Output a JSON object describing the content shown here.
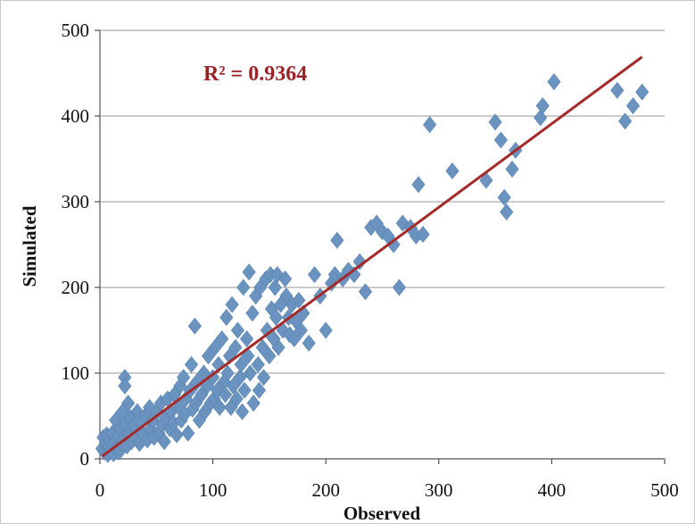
{
  "chart_data": {
    "type": "scatter",
    "title": "",
    "xlabel": "Observed",
    "ylabel": "Simulated",
    "xlim": [
      0,
      500
    ],
    "ylim": [
      0,
      500
    ],
    "xticks": [
      "0",
      "100",
      "200",
      "300",
      "400",
      "500"
    ],
    "yticks": [
      "0",
      "100",
      "200",
      "300",
      "400",
      "500"
    ],
    "grid": "horizontal",
    "legend": "none",
    "annotation": "R² = 0.9364",
    "colors": {
      "points": "#6a93c0",
      "trendline": "#a52a2a",
      "annotation": "#9b2226",
      "grid": "#999999",
      "frame": "#c8c8c8"
    },
    "trendline": {
      "x": [
        2,
        480
      ],
      "y": [
        3,
        469
      ]
    },
    "series": [
      {
        "marker": "diamond",
        "points": [
          [
            2,
            12
          ],
          [
            3,
            25
          ],
          [
            4,
            8
          ],
          [
            5,
            18
          ],
          [
            6,
            28
          ],
          [
            7,
            5
          ],
          [
            8,
            15
          ],
          [
            9,
            22
          ],
          [
            10,
            10
          ],
          [
            11,
            30
          ],
          [
            12,
            6
          ],
          [
            13,
            20
          ],
          [
            14,
            45
          ],
          [
            15,
            12
          ],
          [
            16,
            28
          ],
          [
            17,
            8
          ],
          [
            18,
            35
          ],
          [
            19,
            18
          ],
          [
            20,
            55
          ],
          [
            21,
            25
          ],
          [
            22,
            95
          ],
          [
            22,
            85
          ],
          [
            23,
            40
          ],
          [
            24,
            15
          ],
          [
            25,
            65
          ],
          [
            26,
            30
          ],
          [
            27,
            48
          ],
          [
            28,
            20
          ],
          [
            30,
            38
          ],
          [
            32,
            25
          ],
          [
            33,
            55
          ],
          [
            35,
            18
          ],
          [
            36,
            42
          ],
          [
            38,
            30
          ],
          [
            40,
            50
          ],
          [
            42,
            22
          ],
          [
            44,
            60
          ],
          [
            45,
            35
          ],
          [
            47,
            45
          ],
          [
            48,
            25
          ],
          [
            50,
            55
          ],
          [
            52,
            30
          ],
          [
            54,
            65
          ],
          [
            55,
            40
          ],
          [
            57,
            20
          ],
          [
            58,
            48
          ],
          [
            60,
            70
          ],
          [
            62,
            35
          ],
          [
            63,
            55
          ],
          [
            65,
            42
          ],
          [
            66,
            75
          ],
          [
            68,
            28
          ],
          [
            70,
            60
          ],
          [
            71,
            85
          ],
          [
            72,
            45
          ],
          [
            74,
            95
          ],
          [
            75,
            52
          ],
          [
            76,
            70
          ],
          [
            78,
            30
          ],
          [
            80,
            80
          ],
          [
            81,
            110
          ],
          [
            82,
            58
          ],
          [
            84,
            155
          ],
          [
            85,
            65
          ],
          [
            86,
            90
          ],
          [
            88,
            45
          ],
          [
            90,
            75
          ],
          [
            92,
            100
          ],
          [
            93,
            55
          ],
          [
            95,
            85
          ],
          [
            96,
            120
          ],
          [
            98,
            65
          ],
          [
            100,
            95
          ],
          [
            101,
            70
          ],
          [
            102,
            130
          ],
          [
            104,
            80
          ],
          [
            105,
            110
          ],
          [
            106,
            60
          ],
          [
            108,
            140
          ],
          [
            110,
            90
          ],
          [
            111,
            75
          ],
          [
            112,
            165
          ],
          [
            113,
            100
          ],
          [
            115,
            120
          ],
          [
            116,
            60
          ],
          [
            117,
            180
          ],
          [
            118,
            85
          ],
          [
            120,
            130
          ],
          [
            121,
            70
          ],
          [
            122,
            150
          ],
          [
            124,
            95
          ],
          [
            125,
            110
          ],
          [
            126,
            55
          ],
          [
            127,
            200
          ],
          [
            128,
            80
          ],
          [
            130,
            140
          ],
          [
            131,
            120
          ],
          [
            132,
            218
          ],
          [
            133,
            100
          ],
          [
            135,
            170
          ],
          [
            136,
            65
          ],
          [
            138,
            190
          ],
          [
            140,
            110
          ],
          [
            141,
            80
          ],
          [
            142,
            200
          ],
          [
            144,
            130
          ],
          [
            145,
            95
          ],
          [
            147,
            210
          ],
          [
            148,
            150
          ],
          [
            150,
            120
          ],
          [
            151,
            215
          ],
          [
            152,
            175
          ],
          [
            154,
            140
          ],
          [
            155,
            200
          ],
          [
            156,
            165
          ],
          [
            157,
            215
          ],
          [
            158,
            130
          ],
          [
            160,
            180
          ],
          [
            162,
            150
          ],
          [
            164,
            210
          ],
          [
            165,
            190
          ],
          [
            167,
            165
          ],
          [
            168,
            145
          ],
          [
            170,
            180
          ],
          [
            172,
            140
          ],
          [
            174,
            160
          ],
          [
            176,
            185
          ],
          [
            178,
            150
          ],
          [
            180,
            170
          ],
          [
            185,
            135
          ],
          [
            190,
            215
          ],
          [
            195,
            190
          ],
          [
            200,
            150
          ],
          [
            205,
            205
          ],
          [
            208,
            215
          ],
          [
            210,
            255
          ],
          [
            215,
            210
          ],
          [
            220,
            220
          ],
          [
            225,
            215
          ],
          [
            230,
            230
          ],
          [
            235,
            195
          ],
          [
            240,
            270
          ],
          [
            245,
            275
          ],
          [
            250,
            265
          ],
          [
            255,
            260
          ],
          [
            260,
            250
          ],
          [
            265,
            200
          ],
          [
            268,
            275
          ],
          [
            275,
            270
          ],
          [
            280,
            260
          ],
          [
            282,
            320
          ],
          [
            286,
            262
          ],
          [
            292,
            390
          ],
          [
            312,
            336
          ],
          [
            342,
            325
          ],
          [
            350,
            393
          ],
          [
            355,
            372
          ],
          [
            358,
            305
          ],
          [
            360,
            288
          ],
          [
            365,
            338
          ],
          [
            368,
            360
          ],
          [
            390,
            398
          ],
          [
            392,
            412
          ],
          [
            402,
            440
          ],
          [
            458,
            430
          ],
          [
            465,
            394
          ],
          [
            472,
            412
          ],
          [
            480,
            428
          ]
        ]
      }
    ]
  }
}
